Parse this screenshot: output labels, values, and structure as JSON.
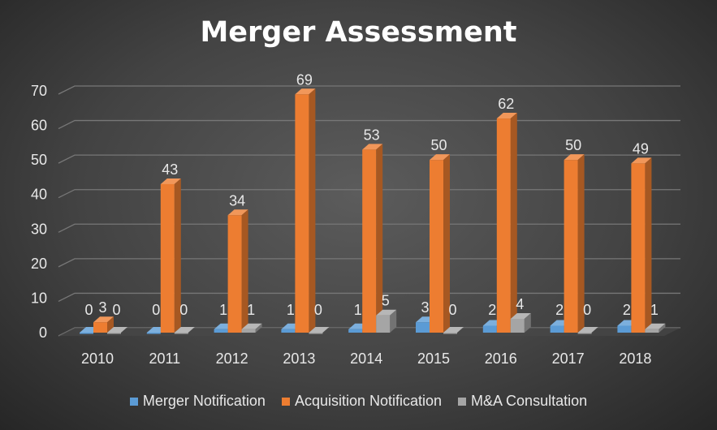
{
  "chart_data": {
    "type": "bar",
    "title": "Merger Assessment",
    "categories": [
      "2010",
      "2011",
      "2012",
      "2013",
      "2014",
      "2015",
      "2016",
      "2017",
      "2018"
    ],
    "series": [
      {
        "name": "Merger Notification",
        "color": "#5b9bd5",
        "values": [
          0,
          0,
          1,
          1,
          1,
          3,
          2,
          2,
          2
        ]
      },
      {
        "name": "Acquisition Notification",
        "color": "#ed7d31",
        "values": [
          3,
          43,
          34,
          69,
          53,
          50,
          62,
          50,
          49
        ]
      },
      {
        "name": "M&A Consultation",
        "color": "#a5a5a5",
        "values": [
          0,
          0,
          1,
          0,
          5,
          0,
          4,
          0,
          1
        ]
      }
    ],
    "yticks": [
      0,
      10,
      20,
      30,
      40,
      50,
      60,
      70
    ],
    "ylim": [
      0,
      70
    ],
    "xlabel": "",
    "ylabel": "",
    "grid": true,
    "legend": "bottom"
  }
}
